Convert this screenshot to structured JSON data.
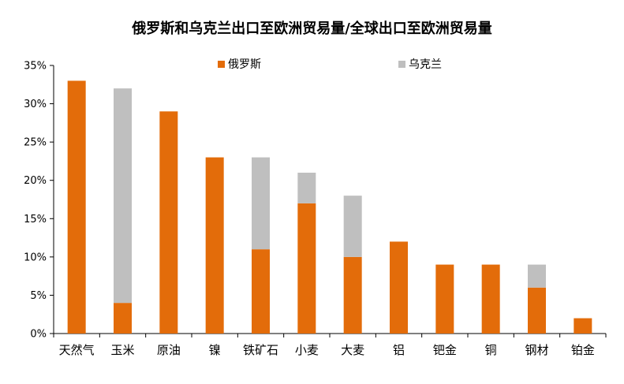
{
  "chart_data": {
    "type": "bar",
    "stacked": true,
    "title": "俄罗斯和乌克兰出口至欧洲贸易量/全球出口至欧洲贸易量",
    "xlabel": "",
    "ylabel": "",
    "categories": [
      "天然气",
      "玉米",
      "原油",
      "镍",
      "铁矿石",
      "小麦",
      "大麦",
      "铝",
      "钯金",
      "铜",
      "钢材",
      "铂金"
    ],
    "series": [
      {
        "name": "俄罗斯",
        "color": "#E36C0A",
        "values": [
          33,
          4,
          29,
          23,
          11,
          17,
          10,
          12,
          9,
          9,
          6,
          2
        ]
      },
      {
        "name": "乌克兰",
        "color": "#BFBFBF",
        "values": [
          0,
          28,
          0,
          0,
          12,
          4,
          8,
          0,
          0,
          0,
          3,
          0
        ]
      }
    ],
    "ylim": [
      0,
      35
    ],
    "y_ticks": [
      "0%",
      "5%",
      "10%",
      "15%",
      "20%",
      "25%",
      "30%",
      "35%"
    ],
    "y_tick_values": [
      0,
      5,
      10,
      15,
      20,
      25,
      30,
      35
    ],
    "grid": false,
    "legend": "top-center"
  }
}
